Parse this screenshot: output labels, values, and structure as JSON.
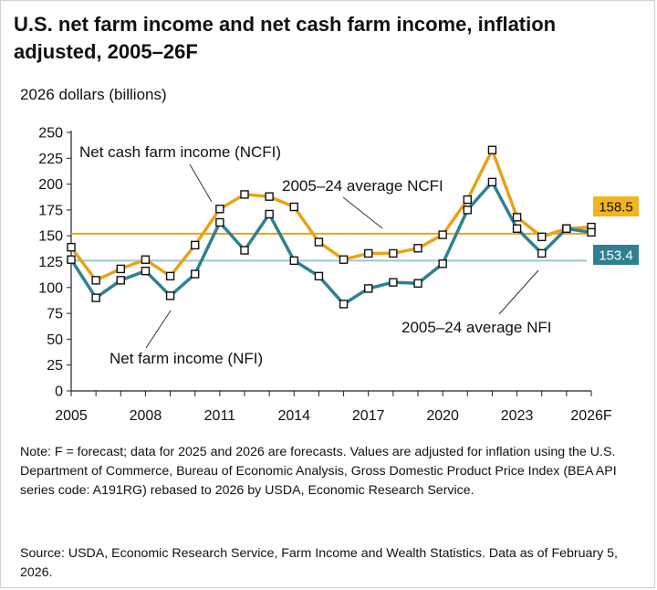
{
  "title": "U.S. net farm income and net cash farm income, inflation adjusted, 2005–26F",
  "units_label": "2026 dollars (billions)",
  "note": "Note: F = forecast; data for 2025 and 2026 are forecasts. Values are adjusted for inflation using the U.S. Department of Commerce, Bureau of Economic Analysis, Gross Domestic Product Price Index (BEA API series code: A191RG) rebased to 2026 by USDA, Economic Research Service.",
  "source": "Source: USDA, Economic Research Service, Farm Income and Wealth Statistics. Data as of February 5, 2026.",
  "chart_data": {
    "type": "line",
    "x": [
      2005,
      2006,
      2007,
      2008,
      2009,
      2010,
      2011,
      2012,
      2013,
      2014,
      2015,
      2016,
      2017,
      2018,
      2019,
      2020,
      2021,
      2022,
      2023,
      2024,
      2025,
      2026
    ],
    "x_tick_labels": [
      "2005",
      "2008",
      "2011",
      "2014",
      "2017",
      "2020",
      "2023",
      "2026F"
    ],
    "y_ticks": [
      0,
      25,
      50,
      75,
      100,
      125,
      150,
      175,
      200,
      225,
      250
    ],
    "ylim": [
      0,
      250
    ],
    "ylabel": "2026 dollars (billions)",
    "grid": false,
    "series": [
      {
        "name": "Net cash farm income (NCFI)",
        "color": "#E8A317",
        "values": [
          139,
          107,
          118,
          127,
          111,
          141,
          176,
          190,
          188,
          178,
          144,
          127,
          133,
          133,
          138,
          151,
          185,
          233,
          168,
          149,
          157,
          158.5
        ]
      },
      {
        "name": "Net farm income (NFI)",
        "color": "#2E8193",
        "values": [
          127,
          90,
          107,
          116,
          92,
          113,
          163,
          136,
          171,
          126,
          111,
          84,
          99,
          105,
          104,
          123,
          175,
          202,
          157,
          133,
          157,
          153.4
        ]
      }
    ],
    "reference_lines": [
      {
        "name": "2005–24 average NCFI",
        "value": 152,
        "color": "#E8A317"
      },
      {
        "name": "2005–24 average NFI",
        "value": 126,
        "color": "#9CC8D2"
      }
    ],
    "end_labels": [
      {
        "text": "158.5",
        "fill": "#F2B51F",
        "text_color": "#111111"
      },
      {
        "text": "153.4",
        "fill": "#2E8193",
        "text_color": "#ffffff"
      }
    ],
    "annotations": {
      "ncfi": "Net cash farm income (NCFI)",
      "avg_ncfi": "2005–24 average NCFI",
      "avg_nfi": "2005–24 average NFI",
      "nfi": "Net farm income (NFI)"
    }
  }
}
